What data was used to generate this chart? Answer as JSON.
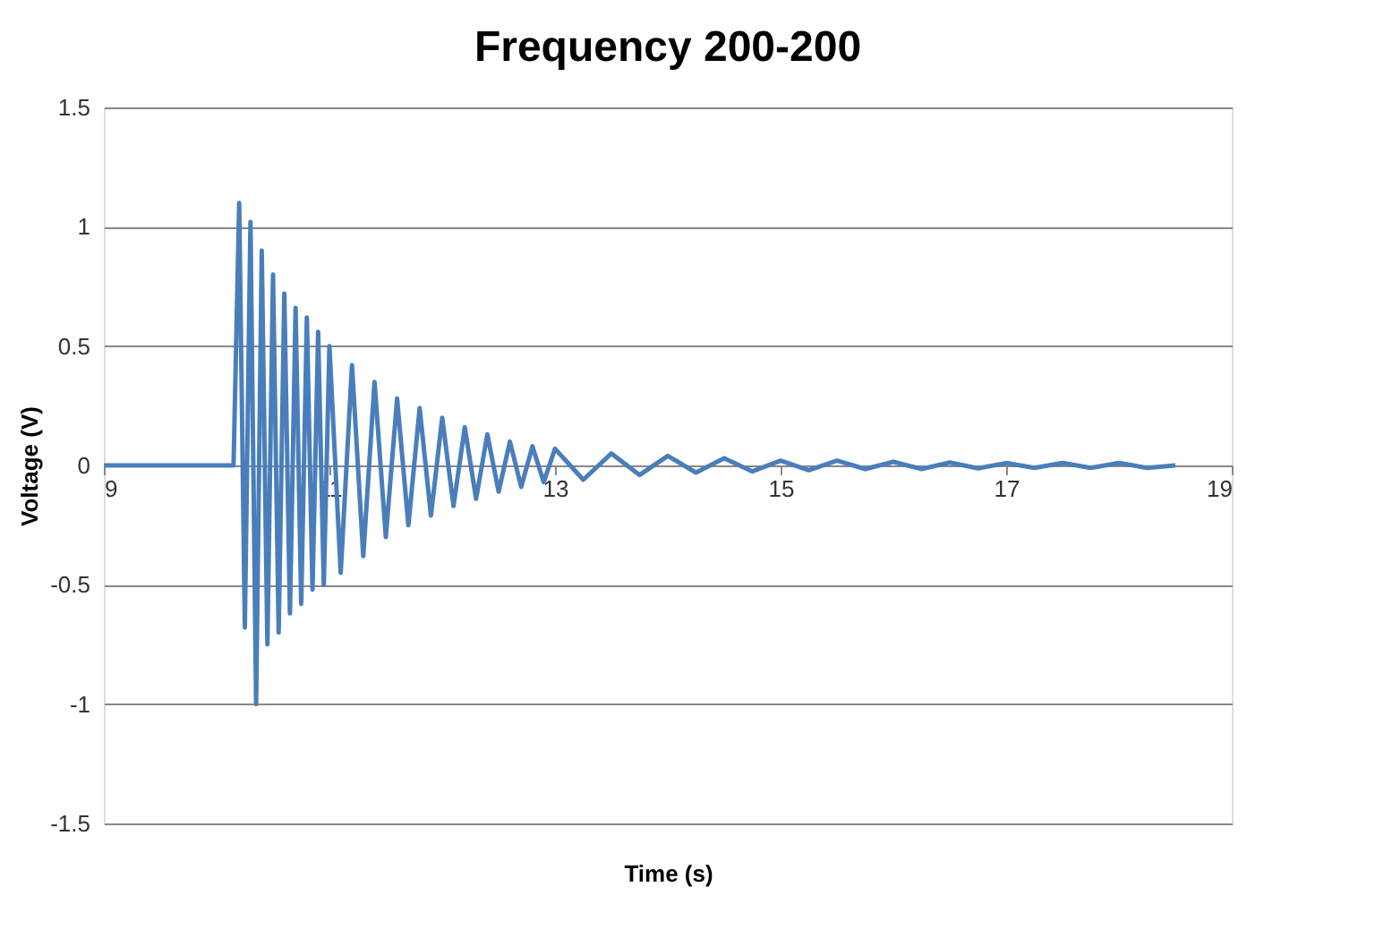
{
  "chart_data": {
    "type": "line",
    "title": "Frequency 200-200",
    "xlabel": "Time (s)",
    "ylabel": "Voltage (V)",
    "xlim": [
      9,
      19
    ],
    "xticks": [
      9,
      11,
      13,
      15,
      17,
      19
    ],
    "ylim": [
      -1.5,
      1.5
    ],
    "yticks": [
      -1.5,
      -1,
      -0.5,
      0,
      0.5,
      1,
      1.5
    ],
    "grid": "y",
    "marker": "none",
    "line_style": "solid",
    "series": [
      {
        "color": "#4a7ebb",
        "x": [
          9,
          10.1,
          10.15,
          10.2,
          10.25,
          10.3,
          10.35,
          10.4,
          10.45,
          10.5,
          10.55,
          10.6,
          10.65,
          10.7,
          10.75,
          10.8,
          10.85,
          10.9,
          10.95,
          11.0,
          11.1,
          11.2,
          11.3,
          11.4,
          11.5,
          11.6,
          11.7,
          11.8,
          11.9,
          12.0,
          12.1,
          12.2,
          12.3,
          12.4,
          12.5,
          12.6,
          12.7,
          12.8,
          12.9,
          13.0,
          13.25,
          13.5,
          13.75,
          14,
          14.25,
          14.5,
          14.75,
          15,
          15.25,
          15.5,
          15.75,
          16,
          16.25,
          16.5,
          16.75,
          17,
          17.25,
          17.5,
          17.75,
          18,
          18.25,
          18.5
        ],
        "values": [
          0,
          0,
          0,
          1.1,
          -0.68,
          1.02,
          -1.0,
          0.9,
          -0.75,
          0.8,
          -0.7,
          0.72,
          -0.62,
          0.66,
          -0.58,
          0.62,
          -0.52,
          0.56,
          -0.5,
          0.5,
          -0.45,
          0.42,
          -0.38,
          0.35,
          -0.3,
          0.28,
          -0.25,
          0.24,
          -0.21,
          0.2,
          -0.17,
          0.16,
          -0.14,
          0.13,
          -0.11,
          0.1,
          -0.09,
          0.08,
          -0.07,
          0.07,
          -0.06,
          0.05,
          -0.04,
          0.04,
          -0.03,
          0.03,
          -0.025,
          0.02,
          -0.02,
          0.02,
          -0.015,
          0.015,
          -0.015,
          0.012,
          -0.012,
          0.01,
          -0.01,
          0.01,
          -0.01,
          0.01,
          -0.01,
          0
        ]
      }
    ]
  }
}
